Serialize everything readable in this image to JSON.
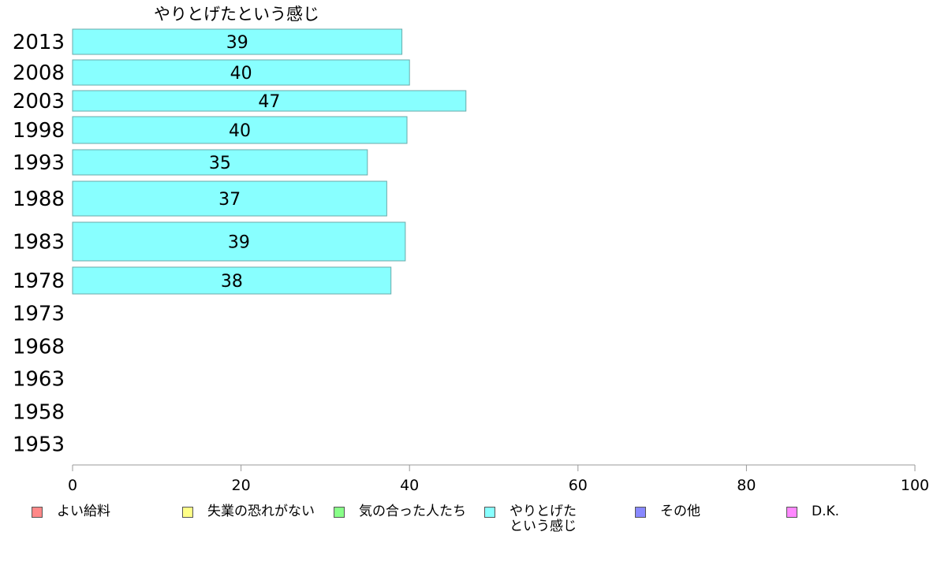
{
  "chart_data": {
    "type": "bar",
    "orientation": "horizontal",
    "title": "やりとげたという感じ",
    "categories": [
      "2013",
      "2008",
      "2003",
      "1998",
      "1993",
      "1988",
      "1983",
      "1978",
      "1973",
      "1968",
      "1963",
      "1958",
      "1953"
    ],
    "series": [
      {
        "name": "やりとげたという感じ",
        "color": "#88ffff",
        "values": [
          39,
          40,
          47,
          40,
          35,
          37,
          39,
          38,
          null,
          null,
          null,
          null,
          null
        ],
        "plotted": [
          39.1,
          40.0,
          46.7,
          39.7,
          35.0,
          37.3,
          39.5,
          37.8,
          null,
          null,
          null,
          null,
          null
        ]
      }
    ],
    "xlim": [
      0,
      100
    ],
    "xticks": [
      "0",
      "20",
      "40",
      "60",
      "80",
      "100"
    ],
    "xlabel": "",
    "ylabel": "",
    "grid": false,
    "legend_position": "bottom"
  },
  "legend": [
    {
      "label": "よい給料",
      "color": "#ff8888"
    },
    {
      "label": "失業の恐れがない",
      "color": "#ffff88"
    },
    {
      "label": "気の合った人たち",
      "color": "#88ff88"
    },
    {
      "label": "やりとげた\nという感じ",
      "color": "#88ffff"
    },
    {
      "label": "その他",
      "color": "#8888ff"
    },
    {
      "label": "D.K.",
      "color": "#ff88ff"
    }
  ]
}
